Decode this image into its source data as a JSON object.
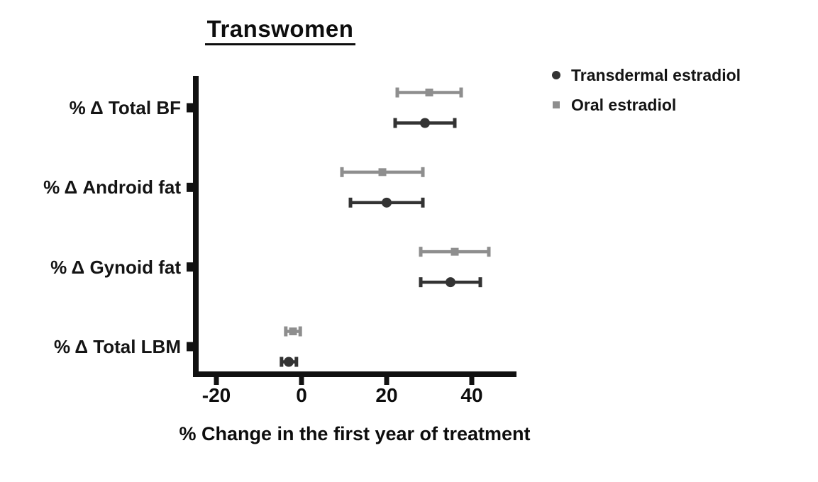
{
  "chart_data": {
    "type": "scatter",
    "subtype": "horizontal-error-bar-forest-plot",
    "title": "Transwomen",
    "xlabel": "% Change in the first year of treatment",
    "categories": [
      "% Δ Total BF",
      "% Δ Android fat",
      "% Δ Gynoid fat",
      "% Δ Total LBM"
    ],
    "xticks": [
      -20,
      0,
      20,
      40
    ],
    "xlim": [
      -25.5,
      50.5
    ],
    "grid": false,
    "legend_position": "top-right",
    "axis_color": "#111111",
    "series": [
      {
        "name": "Transdermal estradiol",
        "marker": "circle",
        "color": "#333333",
        "values": [
          29,
          20,
          35,
          -3
        ],
        "ci_low": [
          22,
          11.5,
          28,
          -4.7
        ],
        "ci_high": [
          36,
          28.5,
          42,
          -1.2
        ]
      },
      {
        "name": "Oral estradiol",
        "marker": "square",
        "color": "#8e8e8e",
        "values": [
          30,
          19,
          36,
          -2
        ],
        "ci_low": [
          22.5,
          9.5,
          28,
          -3.7
        ],
        "ci_high": [
          37.5,
          28.5,
          44,
          -0.3
        ]
      }
    ]
  }
}
